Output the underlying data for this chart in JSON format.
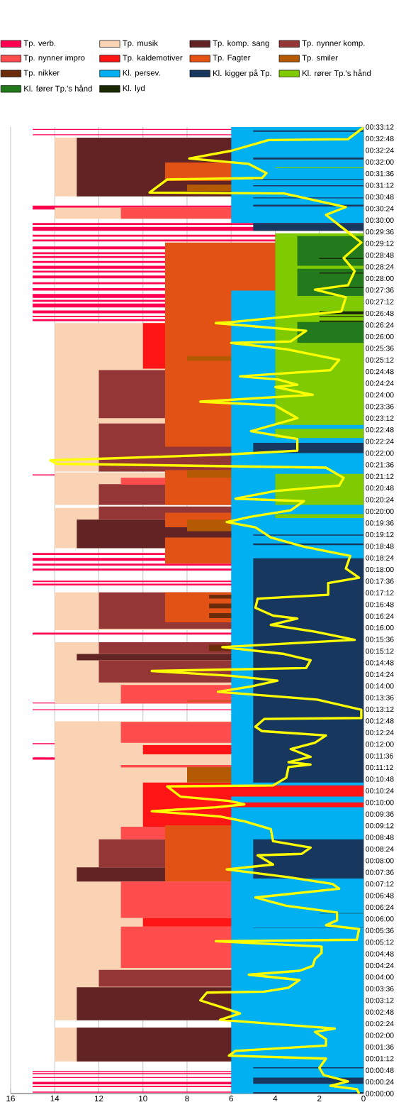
{
  "chart_data": {
    "type": "area",
    "orientation": "horizontal",
    "xlim": [
      16,
      0
    ],
    "ylim": [
      0,
      1992
    ],
    "grid": "x",
    "legend": "top",
    "xticks": [
      0,
      2,
      4,
      6,
      8,
      10,
      12,
      14,
      16
    ],
    "yticks": [
      {
        "value": 0,
        "label": "00:00:00"
      },
      {
        "value": 24,
        "label": "00:00:24"
      },
      {
        "value": 48,
        "label": "00:00:48"
      },
      {
        "value": 72,
        "label": "00:01:12"
      },
      {
        "value": 96,
        "label": "00:01:36"
      },
      {
        "value": 120,
        "label": "00:02:00"
      },
      {
        "value": 144,
        "label": "00:02:24"
      },
      {
        "value": 168,
        "label": "00:02:48"
      },
      {
        "value": 192,
        "label": "00:03:12"
      },
      {
        "value": 216,
        "label": "00:03:36"
      },
      {
        "value": 240,
        "label": "00:04:00"
      },
      {
        "value": 264,
        "label": "00:04:24"
      },
      {
        "value": 288,
        "label": "00:04:48"
      },
      {
        "value": 312,
        "label": "00:05:12"
      },
      {
        "value": 336,
        "label": "00:05:36"
      },
      {
        "value": 360,
        "label": "00:06:00"
      },
      {
        "value": 384,
        "label": "00:06:24"
      },
      {
        "value": 408,
        "label": "00:06:48"
      },
      {
        "value": 432,
        "label": "00:07:12"
      },
      {
        "value": 456,
        "label": "00:07:36"
      },
      {
        "value": 480,
        "label": "00:08:00"
      },
      {
        "value": 504,
        "label": "00:08:24"
      },
      {
        "value": 528,
        "label": "00:08:48"
      },
      {
        "value": 552,
        "label": "00:09:12"
      },
      {
        "value": 576,
        "label": "00:09:36"
      },
      {
        "value": 600,
        "label": "00:10:00"
      },
      {
        "value": 624,
        "label": "00:10:24"
      },
      {
        "value": 648,
        "label": "00:10:48"
      },
      {
        "value": 672,
        "label": "00:11:12"
      },
      {
        "value": 696,
        "label": "00:11:36"
      },
      {
        "value": 720,
        "label": "00:12:00"
      },
      {
        "value": 744,
        "label": "00:12:24"
      },
      {
        "value": 768,
        "label": "00:12:48"
      },
      {
        "value": 792,
        "label": "00:13:12"
      },
      {
        "value": 816,
        "label": "00:13:36"
      },
      {
        "value": 840,
        "label": "00:14:00"
      },
      {
        "value": 864,
        "label": "00:14:24"
      },
      {
        "value": 888,
        "label": "00:14:48"
      },
      {
        "value": 912,
        "label": "00:15:12"
      },
      {
        "value": 936,
        "label": "00:15:36"
      },
      {
        "value": 960,
        "label": "00:16:00"
      },
      {
        "value": 984,
        "label": "00:16:24"
      },
      {
        "value": 1008,
        "label": "00:16:48"
      },
      {
        "value": 1032,
        "label": "00:17:12"
      },
      {
        "value": 1056,
        "label": "00:17:36"
      },
      {
        "value": 1080,
        "label": "00:18:00"
      },
      {
        "value": 1104,
        "label": "00:18:24"
      },
      {
        "value": 1128,
        "label": "00:18:48"
      },
      {
        "value": 1152,
        "label": "00:19:12"
      },
      {
        "value": 1176,
        "label": "00:19:36"
      },
      {
        "value": 1200,
        "label": "00:20:00"
      },
      {
        "value": 1224,
        "label": "00:20:24"
      },
      {
        "value": 1248,
        "label": "00:20:48"
      },
      {
        "value": 1272,
        "label": "00:21:12"
      },
      {
        "value": 1296,
        "label": "00:21:36"
      },
      {
        "value": 1320,
        "label": "00:22:00"
      },
      {
        "value": 1344,
        "label": "00:22:24"
      },
      {
        "value": 1368,
        "label": "00:22:48"
      },
      {
        "value": 1392,
        "label": "00:23:12"
      },
      {
        "value": 1416,
        "label": "00:23:36"
      },
      {
        "value": 1440,
        "label": "00:24:00"
      },
      {
        "value": 1464,
        "label": "00:24:24"
      },
      {
        "value": 1488,
        "label": "00:24:48"
      },
      {
        "value": 1512,
        "label": "00:25:12"
      },
      {
        "value": 1536,
        "label": "00:25:36"
      },
      {
        "value": 1560,
        "label": "00:26:00"
      },
      {
        "value": 1584,
        "label": "00:26:24"
      },
      {
        "value": 1608,
        "label": "00:26:48"
      },
      {
        "value": 1632,
        "label": "00:27:12"
      },
      {
        "value": 1656,
        "label": "00:27:36"
      },
      {
        "value": 1680,
        "label": "00:28:00"
      },
      {
        "value": 1704,
        "label": "00:28:24"
      },
      {
        "value": 1728,
        "label": "00:28:48"
      },
      {
        "value": 1752,
        "label": "00:29:12"
      },
      {
        "value": 1776,
        "label": "00:29:36"
      },
      {
        "value": 1800,
        "label": "00:30:00"
      },
      {
        "value": 1824,
        "label": "00:30:24"
      },
      {
        "value": 1848,
        "label": "00:30:48"
      },
      {
        "value": 1872,
        "label": "00:31:12"
      },
      {
        "value": 1896,
        "label": "00:31:36"
      },
      {
        "value": 1920,
        "label": "00:32:00"
      },
      {
        "value": 1944,
        "label": "00:32:24"
      },
      {
        "value": 1968,
        "label": "00:32:48"
      },
      {
        "value": 1992,
        "label": "00:33:12"
      }
    ],
    "series": [
      {
        "name": "Tp. verb.",
        "color": "#ff0050",
        "x": [
          2,
          2,
          4,
          4,
          13,
          13,
          16,
          16,
          19,
          19,
          24,
          24,
          32,
          32,
          34,
          34,
          40,
          40,
          42,
          42,
          44,
          44,
          46,
          46,
          688,
          688,
          693,
          693,
          720,
          720,
          722,
          722,
          790,
          790,
          792,
          792,
          804,
          804,
          806,
          806,
          946,
          946,
          950,
          950,
          1047,
          1047,
          1051,
          1051,
          1054,
          1054,
          1057,
          1057,
          1078,
          1078,
          1082,
          1082,
          1088,
          1088,
          1092,
          1092,
          1098,
          1098,
          1104,
          1104,
          1110,
          1110,
          1114,
          1114,
          1274,
          1274,
          1276,
          1276,
          1592,
          1592,
          1596,
          1596,
          1600,
          1600,
          1603,
          1603,
          1608,
          1608,
          1614,
          1614,
          1620,
          1620,
          1628,
          1628,
          1632,
          1632,
          1636,
          1636,
          1640,
          1640,
          1648,
          1648,
          1655,
          1655,
          1660,
          1660,
          1668,
          1668,
          1672,
          1672,
          1680,
          1680,
          1686,
          1686,
          1692,
          1692,
          1696,
          1696,
          1700,
          1700,
          1706,
          1706,
          1712,
          1712,
          1716,
          1716,
          1722,
          1722,
          1726,
          1726,
          1730,
          1730,
          1734,
          1734,
          1740,
          1740,
          1746,
          1746,
          1756,
          1756,
          1760,
          1760,
          1766,
          1766,
          1770,
          1770,
          1778,
          1778,
          1786,
          1786,
          1790,
          1790,
          1794,
          1794,
          1822,
          1822,
          1830,
          1830,
          1975,
          1975,
          1977,
          1977,
          1986,
          1986,
          1988,
          1988
        ],
        "values": [
          0,
          15,
          15,
          0,
          0,
          15,
          15,
          0,
          0,
          15,
          15,
          0,
          0,
          15,
          15,
          0,
          0,
          15,
          15,
          0,
          0,
          15,
          15,
          0,
          0,
          15,
          15,
          0,
          0,
          15,
          15,
          0,
          0,
          15,
          15,
          0,
          0,
          15,
          15,
          0,
          0,
          15,
          15,
          0,
          0,
          15,
          15,
          0,
          0,
          15,
          15,
          0,
          0,
          15,
          15,
          0,
          0,
          15,
          15,
          0,
          0,
          15,
          15,
          0,
          0,
          15,
          15,
          0,
          0,
          15,
          15,
          0,
          0,
          15,
          15,
          0,
          0,
          15,
          15,
          0,
          0,
          15,
          15,
          0,
          0,
          15,
          15,
          0,
          0,
          15,
          15,
          0,
          0,
          15,
          15,
          0,
          0,
          15,
          15,
          0,
          0,
          15,
          15,
          0,
          0,
          15,
          15,
          0,
          0,
          15,
          15,
          0,
          0,
          15,
          15,
          0,
          0,
          15,
          15,
          0,
          0,
          15,
          15,
          0,
          0,
          15,
          15,
          0,
          0,
          15,
          15,
          0,
          0,
          15,
          15,
          0,
          0,
          15,
          15,
          0,
          0,
          15,
          15,
          0,
          0,
          15,
          15,
          0,
          0,
          15,
          15,
          0,
          0,
          15,
          15,
          0,
          0,
          15,
          15,
          0
        ]
      },
      {
        "name": "Tp. musik",
        "color": "#f9d3b4",
        "x": [
          66,
          66,
          136,
          136,
          151,
          151,
          767,
          767,
          804,
          804,
          930,
          930,
          955,
          955,
          1033,
          1033,
          1124,
          1124,
          1207,
          1207,
          1213,
          1213,
          1280,
          1280,
          1282,
          1282,
          1588,
          1588,
          1803,
          1803,
          1826,
          1826,
          1849,
          1849,
          1970,
          1970
        ],
        "values": [
          0,
          14,
          14,
          0,
          0,
          14,
          14,
          0,
          0,
          14,
          14,
          0,
          0,
          14,
          14,
          0,
          0,
          14,
          14,
          0,
          0,
          14,
          14,
          0,
          0,
          14,
          14,
          0,
          0,
          14,
          14,
          0,
          0,
          14,
          14,
          0
        ]
      },
      {
        "name": "Tp. komp. sang",
        "color": "#622324",
        "x": [
          66,
          66,
          136,
          136,
          151,
          151,
          219,
          219,
          437,
          437,
          466,
          466,
          893,
          893,
          906,
          906,
          1124,
          1124,
          1183,
          1183,
          1849,
          1849,
          1970,
          1970
        ],
        "values": [
          0,
          13,
          13,
          0,
          0,
          13,
          13,
          0,
          0,
          13,
          13,
          0,
          0,
          13,
          13,
          0,
          0,
          13,
          13,
          0,
          0,
          13,
          13,
          0
        ]
      },
      {
        "name": "Tp. nynner komp.",
        "color": "#943636",
        "x": [
          220,
          220,
          255,
          255,
          466,
          466,
          524,
          524,
          847,
          847,
          893,
          893,
          906,
          906,
          930,
          930,
          958,
          958,
          1033,
          1033,
          1183,
          1183,
          1210,
          1210,
          1213,
          1213,
          1256,
          1256,
          1282,
          1282,
          1381,
          1381,
          1392,
          1392,
          1491,
          1491
        ],
        "values": [
          0,
          12,
          12,
          0,
          0,
          12,
          12,
          0,
          0,
          12,
          12,
          0,
          0,
          12,
          12,
          0,
          0,
          12,
          12,
          0,
          0,
          12,
          12,
          0,
          0,
          12,
          12,
          0,
          0,
          12,
          12,
          0,
          0,
          12,
          12,
          0
        ]
      },
      {
        "name": "Tp. nynner impro",
        "color": "#ff4c4c",
        "x": [
          259,
          259,
          344,
          344,
          362,
          362,
          437,
          437,
          524,
          524,
          550,
          550,
          672,
          672,
          677,
          677,
          723,
          723,
          766,
          766,
          804,
          804,
          842,
          842,
          1255,
          1255,
          1269,
          1269,
          1803,
          1803,
          1826,
          1826
        ],
        "values": [
          0,
          11,
          11,
          0,
          0,
          11,
          11,
          0,
          0,
          11,
          11,
          0,
          0,
          11,
          11,
          0,
          0,
          11,
          11,
          0,
          0,
          11,
          11,
          0,
          0,
          11,
          11,
          0,
          0,
          11,
          11,
          0
        ]
      },
      {
        "name": "Tp. kaldemotiver",
        "color": "#ff1515",
        "x": [
          344,
          344,
          362,
          362,
          550,
          550,
          641,
          641,
          699,
          699,
          718,
          718,
          1494,
          1494,
          1588,
          1588
        ],
        "values": [
          0,
          10,
          10,
          0,
          0,
          10,
          10,
          0,
          0,
          10,
          10,
          0,
          0,
          10,
          10,
          0
        ]
      },
      {
        "name": "Tp. Fagter",
        "color": "#e35215",
        "x": [
          437,
          437,
          553,
          553,
          971,
          971,
          1033,
          1033,
          1092,
          1092,
          1146,
          1146,
          1167,
          1167,
          1197,
          1197,
          1213,
          1213,
          1285,
          1285,
          1333,
          1333,
          1754,
          1754,
          1881,
          1881,
          1919,
          1919
        ],
        "values": [
          0,
          9,
          9,
          0,
          0,
          9,
          9,
          0,
          0,
          9,
          9,
          0,
          0,
          9,
          9,
          0,
          0,
          9,
          9,
          0,
          0,
          9,
          9,
          0,
          0,
          9,
          9,
          0
        ]
      },
      {
        "name": "Tp. smiler",
        "color": "#b55a04",
        "x": [
          641,
          641,
          673,
          673,
          808,
          808,
          810,
          810,
          1159,
          1159,
          1183,
          1183,
          1269,
          1269,
          1285,
          1285,
          1510,
          1510,
          1520,
          1520,
          1860,
          1860,
          1873,
          1873
        ],
        "values": [
          0,
          8,
          8,
          0,
          0,
          8,
          8,
          0,
          0,
          8,
          8,
          0,
          0,
          8,
          8,
          0,
          0,
          8,
          8,
          0,
          0,
          8,
          8,
          0
        ]
      },
      {
        "name": "Tp. nikker",
        "color": "#6b2c0c",
        "x": [
          912,
          912,
          925,
          925,
          980,
          980,
          990,
          990,
          1000,
          1000,
          1010,
          1010,
          1020,
          1020,
          1028,
          1028
        ],
        "values": [
          0,
          7,
          7,
          0,
          0,
          7,
          7,
          0,
          0,
          7,
          7,
          0,
          0,
          7,
          7,
          0
        ]
      },
      {
        "name": "Kl. persev.",
        "color": "#00b0f0",
        "x": [
          0,
          0,
          590,
          590,
          600,
          600,
          612,
          612,
          635,
          635,
          1655,
          1655,
          1794,
          1794,
          1992,
          1992
        ],
        "values": [
          0,
          6,
          6,
          0,
          0,
          6,
          6,
          0,
          0,
          6,
          6,
          0,
          0,
          6,
          6,
          0
        ]
      },
      {
        "name": "Kl. kigger på Tp.",
        "color": "#17375e",
        "x": [
          0,
          0,
          3,
          3,
          20,
          20,
          33,
          33,
          52,
          52,
          54,
          54,
          341,
          341,
          342,
          342,
          443,
          443,
          524,
          524,
          641,
          641,
          1103,
          1103,
          1130,
          1130,
          1134,
          1134,
          1150,
          1150,
          1152,
          1152,
          1320,
          1320,
          1341,
          1341,
          1778,
          1778,
          1794,
          1794,
          1828,
          1828,
          1832,
          1832,
          1845,
          1845,
          1847,
          1847,
          1870,
          1870,
          1872,
          1872,
          1883,
          1883,
          1885,
          1885,
          1925,
          1925,
          1929,
          1929,
          1982,
          1982,
          1985,
          1985
        ],
        "values": [
          0,
          5,
          5,
          0,
          0,
          5,
          5,
          0,
          0,
          5,
          5,
          0,
          0,
          5,
          5,
          0,
          0,
          5,
          5,
          0,
          0,
          5,
          5,
          0,
          0,
          5,
          5,
          0,
          0,
          5,
          5,
          0,
          0,
          5,
          5,
          0,
          0,
          5,
          5,
          0,
          0,
          5,
          5,
          0,
          0,
          5,
          5,
          0,
          0,
          5,
          5,
          0,
          0,
          5,
          5,
          0,
          0,
          5,
          5,
          0,
          0,
          5,
          5,
          0
        ]
      },
      {
        "name": "Kl. rører Tp.'s hånd",
        "color": "#7fca00",
        "x": [
          1186,
          1186,
          1194,
          1194,
          1213,
          1213,
          1277,
          1277,
          1351,
          1351,
          1370,
          1370,
          1378,
          1378,
          1773,
          1773,
          1907,
          1907,
          1909,
          1909
        ],
        "values": [
          0,
          4,
          4,
          0,
          0,
          4,
          4,
          0,
          0,
          4,
          4,
          0,
          0,
          4,
          4,
          0,
          0,
          4,
          4,
          0
        ]
      },
      {
        "name": "Kl. fører Tp.'s hånd",
        "color": "#237a1c",
        "x": [
          1547,
          1547,
          1590,
          1590,
          1644,
          1644,
          1700,
          1700,
          1706,
          1706,
          1767,
          1767
        ],
        "values": [
          0,
          3,
          3,
          0,
          0,
          3,
          3,
          0,
          0,
          3,
          3,
          0
        ]
      },
      {
        "name": "Kl. lyd",
        "color": "#1a2a05",
        "x": [
          371,
          371,
          372,
          372,
          1590,
          1590,
          1593,
          1593,
          1600,
          1600,
          1602,
          1602,
          1606,
          1606,
          1612,
          1612,
          1660,
          1660,
          1662,
          1662,
          1690,
          1690,
          1692,
          1692,
          1720,
          1720,
          1722,
          1722
        ],
        "values": [
          0,
          2,
          2,
          0,
          0,
          2,
          2,
          0,
          0,
          2,
          2,
          0,
          0,
          2,
          2,
          0,
          0,
          2,
          2,
          0,
          0,
          2,
          2,
          0,
          0,
          2,
          2,
          0
        ]
      },
      {
        "color": "#ffff00",
        "type": "line",
        "x": [
          0,
          9,
          16,
          25,
          38,
          53,
          72,
          78,
          88,
          99,
          112,
          127,
          134,
          152,
          165,
          179,
          192,
          208,
          210,
          218,
          234,
          245,
          253,
          263,
          277,
          290,
          303,
          314,
          317,
          339,
          347,
          357,
          373,
          387,
          404,
          422,
          432,
          446,
          462,
          472,
          491,
          494,
          507,
          520,
          545,
          561,
          571,
          582,
          590,
          596,
          603,
          612,
          633,
          635,
          651,
          673,
          678,
          683,
          694,
          710,
          723,
          738,
          747,
          756,
          772,
          774,
          791,
          812,
          828,
          839,
          851,
          861,
          871,
          877,
          893,
          906,
          920,
          935,
          952,
          966,
          979,
          985,
          1001,
          1020,
          1028,
          1052,
          1063,
          1082,
          1108,
          1127,
          1146,
          1167,
          1178,
          1189,
          1202,
          1221,
          1226,
          1242,
          1253,
          1269,
          1290,
          1298,
          1305,
          1317,
          1325,
          1349,
          1365,
          1392,
          1418,
          1426,
          1440,
          1456,
          1461,
          1472,
          1478,
          1491,
          1512,
          1534,
          1547,
          1550,
          1572,
          1588,
          1590,
          1612,
          1641,
          1657,
          1666,
          1695,
          1722,
          1754,
          1786,
          1811,
          1827,
          1855,
          1857,
          1884,
          1887,
          1897,
          1916,
          1927,
          1943,
          1965,
          1967,
          1991
        ],
        "values": [
          0.2,
          0.3,
          1.5,
          0.7,
          1.8,
          2.0,
          1.7,
          6.1,
          5.8,
          1.7,
          1.7,
          2.2,
          1.3,
          6.5,
          5.6,
          6.5,
          7.4,
          7.1,
          4.5,
          3.4,
          2.9,
          5.2,
          2.9,
          2.3,
          2.2,
          1.9,
          1.9,
          6.7,
          0.3,
          0.2,
          1.7,
          1.2,
          1.2,
          3.5,
          4.9,
          1.1,
          1.4,
          3.4,
          6.2,
          4.1,
          4.8,
          2.8,
          2.4,
          4.1,
          4.2,
          5.4,
          6.5,
          9.6,
          6.7,
          5.4,
          6.1,
          8.3,
          8.9,
          4.1,
          3.5,
          3.4,
          2.4,
          3.4,
          2.4,
          3.3,
          2.2,
          1.7,
          4.6,
          4.9,
          4.5,
          0.1,
          0.1,
          2.1,
          6.6,
          5.1,
          3.9,
          6.0,
          9.6,
          2.6,
          2.4,
          3.6,
          6.4,
          0.4,
          2.2,
          4.2,
          3.0,
          4.1,
          4.9,
          4.8,
          1.6,
          1.6,
          0.2,
          0.8,
          0.6,
          2.7,
          4.2,
          4.9,
          6.2,
          5.1,
          3.3,
          2.7,
          5.8,
          4.0,
          1.1,
          0.9,
          1.7,
          13.9,
          14.2,
          6.2,
          3.0,
          3.0,
          5.1,
          3.0,
          4.0,
          7.4,
          2.3,
          4.0,
          3.0,
          3.9,
          5.6,
          1.5,
          1.1,
          3.5,
          6.0,
          3.3,
          2.6,
          6.7,
          6.0,
          1.0,
          0.8,
          2.2,
          0.7,
          0.4,
          0.9,
          0.1,
          1.0,
          1.7,
          0.8,
          3.6,
          9.7,
          8.9,
          4.6,
          4.4,
          5.2,
          7.9,
          6.0,
          4.3,
          0.7,
          0.0
        ]
      }
    ]
  }
}
